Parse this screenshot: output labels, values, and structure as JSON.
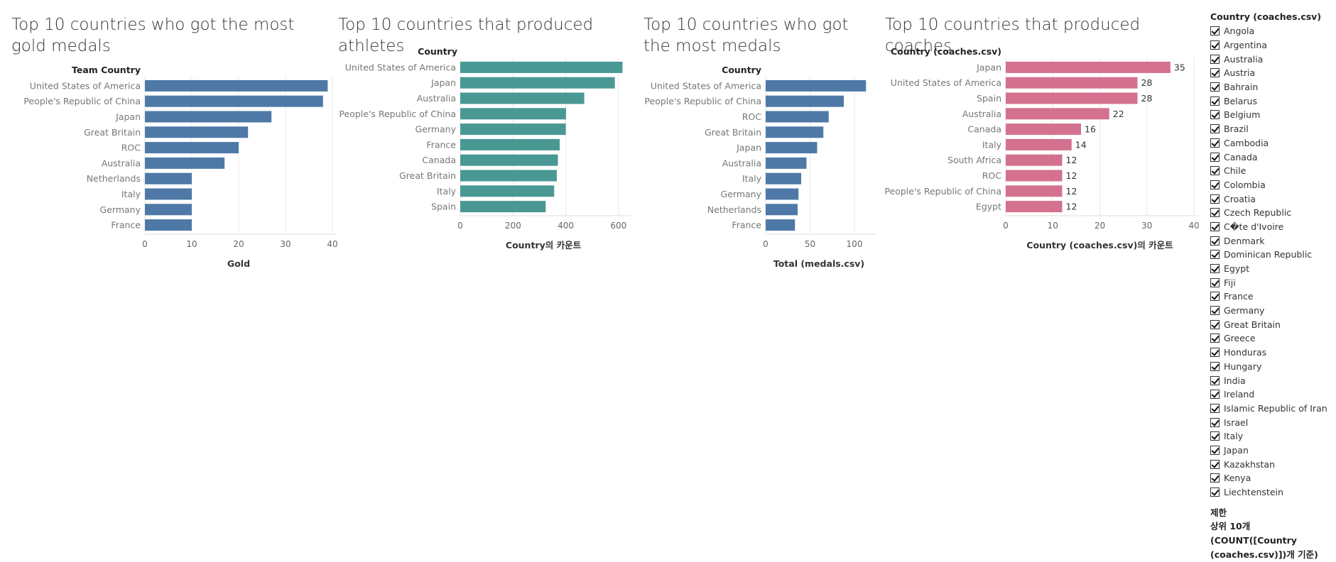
{
  "colors": {
    "blue": "#4e79a7",
    "teal": "#499894",
    "pink": "#d4718f",
    "grid": "#e8e8e8"
  },
  "chart_data": [
    {
      "type": "bar",
      "orientation": "horizontal",
      "title": "Top 10 countries who got the most gold medals",
      "row_header": "Team Country",
      "xlabel": "Gold",
      "categories": [
        "United States of America",
        "People's Republic of China",
        "Japan",
        "Great Britain",
        "ROC",
        "Australia",
        "Netherlands",
        "Italy",
        "Germany",
        "France"
      ],
      "values": [
        39,
        38,
        27,
        22,
        20,
        17,
        10,
        10,
        10,
        10
      ],
      "xlim": [
        0,
        40
      ],
      "ticks": [
        0,
        10,
        20,
        30,
        40
      ],
      "color": "#4e79a7",
      "show_values": false,
      "grid": true
    },
    {
      "type": "bar",
      "orientation": "horizontal",
      "title": "Top 10 countries that produced athletes",
      "row_header": "Country",
      "xlabel": "Country의 카운트",
      "categories": [
        "United States of America",
        "Japan",
        "Australia",
        "People's Republic of China",
        "Germany",
        "France",
        "Canada",
        "Great Britain",
        "Italy",
        "Spain"
      ],
      "values": [
        615,
        586,
        470,
        401,
        400,
        377,
        370,
        366,
        356,
        324
      ],
      "xlim": [
        0,
        630
      ],
      "ticks": [
        0,
        200,
        400,
        600
      ],
      "color": "#499894",
      "show_values": false,
      "grid": true
    },
    {
      "type": "bar",
      "orientation": "horizontal",
      "title": "Top 10 countries who got the most medals",
      "row_header": "Country",
      "xlabel": "Total (medals.csv)",
      "categories": [
        "United States of America",
        "People's Republic of China",
        "ROC",
        "Great Britain",
        "Japan",
        "Australia",
        "Italy",
        "Germany",
        "Netherlands",
        "France"
      ],
      "values": [
        113,
        88,
        71,
        65,
        58,
        46,
        40,
        37,
        36,
        33
      ],
      "xlim": [
        0,
        120
      ],
      "ticks": [
        0,
        50,
        100
      ],
      "color": "#4e79a7",
      "show_values": false,
      "grid": true
    },
    {
      "type": "bar",
      "orientation": "horizontal",
      "title": "Top 10 countries that produced coaches",
      "row_header": "Country (coaches.csv)",
      "xlabel": "Country (coaches.csv)의 카운트",
      "categories": [
        "Japan",
        "United States of America",
        "Spain",
        "Australia",
        "Canada",
        "Italy",
        "South Africa",
        "ROC",
        "People's Republic of China",
        "Egypt"
      ],
      "values": [
        35,
        28,
        28,
        22,
        16,
        14,
        12,
        12,
        12,
        12
      ],
      "xlim": [
        0,
        40
      ],
      "ticks": [
        0,
        10,
        20,
        30,
        40
      ],
      "color": "#d4718f",
      "show_values": true,
      "grid": true
    }
  ],
  "filter": {
    "title": "Country (coaches.csv)",
    "items": [
      "Angola",
      "Argentina",
      "Australia",
      "Austria",
      "Bahrain",
      "Belarus",
      "Belgium",
      "Brazil",
      "Cambodia",
      "Canada",
      "Chile",
      "Colombia",
      "Croatia",
      "Czech Republic",
      "C�te d'Ivoire",
      "Denmark",
      "Dominican Republic",
      "Egypt",
      "Fiji",
      "France",
      "Germany",
      "Great Britain",
      "Greece",
      "Honduras",
      "Hungary",
      "India",
      "Ireland",
      "Islamic Republic of Iran",
      "Israel",
      "Italy",
      "Japan",
      "Kazakhstan",
      "Kenya",
      "Liechtenstein"
    ],
    "checked": true,
    "limit_title": "제한",
    "limit_text": "상위 10개(COUNT([Country (coaches.csv)])개 기준)"
  }
}
